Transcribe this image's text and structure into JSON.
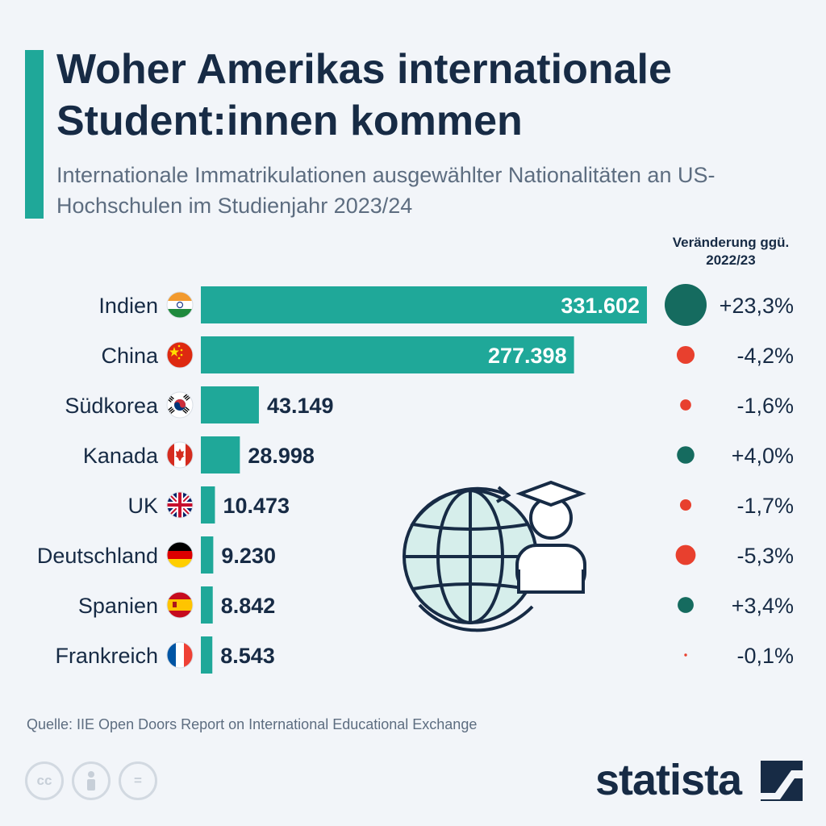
{
  "header": {
    "title": "Woher Amerikas internationale Student:innen kommen",
    "subtitle": "Internationale Immatrikulationen ausgewählter Nationalitäten an US-Hochschulen im Studienjahr 2023/24",
    "change_header": "Veränderung ggü. 2022/23"
  },
  "chart_data": {
    "type": "bar",
    "orientation": "horizontal",
    "categories": [
      "Indien",
      "China",
      "Südkorea",
      "Kanada",
      "UK",
      "Deutschland",
      "Spanien",
      "Frankreich"
    ],
    "values": [
      331602,
      277398,
      43149,
      28998,
      10473,
      9230,
      8842,
      8543
    ],
    "value_labels": [
      "331.602",
      "277.398",
      "43.149",
      "28.998",
      "10.473",
      "9.230",
      "8.842",
      "8.543"
    ],
    "change": [
      23.3,
      -4.2,
      -1.6,
      4.0,
      -1.7,
      -5.3,
      3.4,
      -0.1
    ],
    "change_labels": [
      "+23,3%",
      "-4,2%",
      "-1,6%",
      "+4,0%",
      "-1,7%",
      "-5,3%",
      "+3,4%",
      "-0,1%"
    ],
    "flags": [
      "india-flag-icon",
      "china-flag-icon",
      "south-korea-flag-icon",
      "canada-flag-icon",
      "uk-flag-icon",
      "germany-flag-icon",
      "spain-flag-icon",
      "france-flag-icon"
    ],
    "colors": {
      "bar": "#1fa899",
      "positive": "#156b5f",
      "negative": "#e8402e",
      "label_dark": "#172b45",
      "label_light": "#ffffff"
    }
  },
  "footer": {
    "source": "Quelle: IIE Open Doors Report on International Educational Exchange",
    "logo": "statista",
    "license_icons": [
      "cc",
      "by",
      "nd"
    ]
  }
}
